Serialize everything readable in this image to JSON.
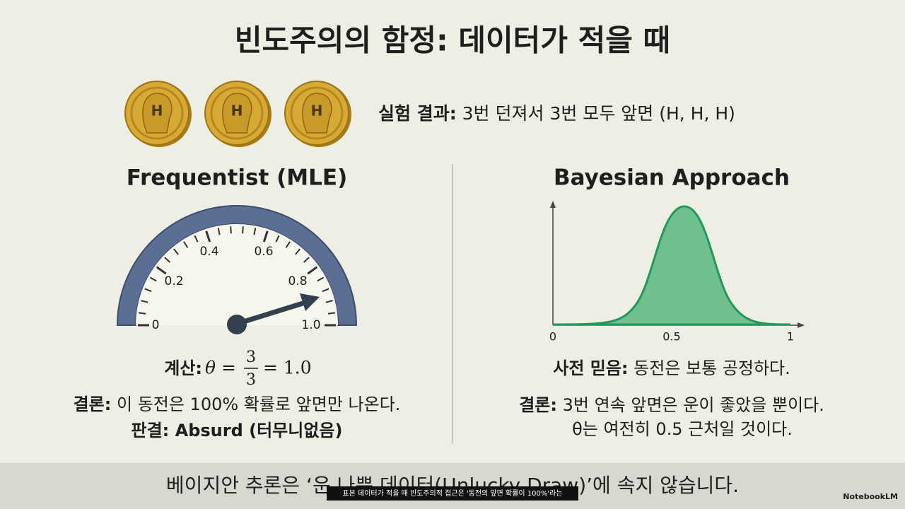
{
  "title": "빈도주의의 함정: 데이터가 적을 때",
  "experiment": {
    "coin_labels": [
      "H",
      "H",
      "H"
    ],
    "label": "실험 결과:",
    "text": "3번 던져서 3번 모두 앞면 (H, H, H)"
  },
  "frequentist": {
    "heading": "Frequentist (MLE)",
    "gauge_labels": [
      "0",
      "0.2",
      "0.4",
      "0.6",
      "0.8",
      "1.0"
    ],
    "calc_label": "계산:",
    "calc_lhs": "θ =",
    "calc_numerator": "3",
    "calc_denominator": "3",
    "calc_rhs": "= 1.0",
    "conclusion_label": "결론:",
    "conclusion": "이 동전은 100% 확률로 앞면만 나온다.",
    "verdict_label": "판결:",
    "verdict": "Absurd (터무니없음)"
  },
  "bayesian": {
    "heading": "Bayesian Approach",
    "axis_labels": [
      "0",
      "0.5",
      "1"
    ],
    "prior_label": "사전 믿음:",
    "prior": "동전은 보통 공정하다.",
    "conclusion_label": "결론:",
    "conclusion_lines": [
      "3번 연속 앞면은 운이 좋았을 뿐이다.",
      "θ는 여전히 0.5 근처일 것이다."
    ]
  },
  "caption": "베이지안 추론은 ‘운 나쁜 데이터(Unlucky Draw)’에 속지 않습니다.",
  "subtitle_overlay": "표본 데이터가 적을 때 빈도주의적 접근은 '동전의 앞면 확률이 100%'라는",
  "brand": "NotebookLM"
}
